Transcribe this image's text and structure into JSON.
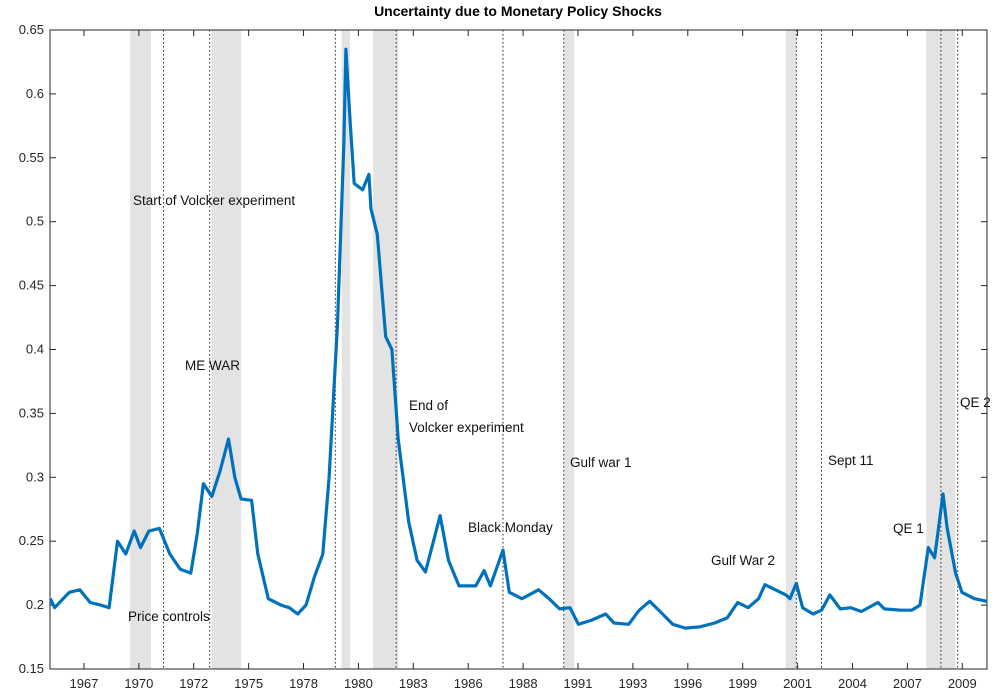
{
  "chart_data": {
    "type": "line",
    "title": "Uncertainty due to Monetary Policy Shocks",
    "x": [
      1965.7,
      1965.9,
      1966.6,
      1967.1,
      1967.6,
      1968.1,
      1968.5,
      1968.9,
      1969.3,
      1969.7,
      1970.0,
      1970.4,
      1970.9,
      1971.4,
      1971.9,
      1972.4,
      1972.7,
      1973.0,
      1973.4,
      1973.8,
      1974.2,
      1974.5,
      1974.8,
      1975.3,
      1975.6,
      1976.1,
      1976.7,
      1977.1,
      1977.5,
      1977.9,
      1978.3,
      1978.7,
      1979.0,
      1979.4,
      1979.7,
      1979.8,
      1980.0,
      1980.2,
      1980.6,
      1980.9,
      1981.0,
      1981.3,
      1981.7,
      1982.0,
      1982.3,
      1982.8,
      1983.2,
      1983.6,
      1983.9,
      1984.3,
      1984.7,
      1985.2,
      1986.0,
      1986.4,
      1986.7,
      1987.3,
      1987.6,
      1988.2,
      1989.0,
      1989.5,
      1990.0,
      1990.5,
      1990.9,
      1991.5,
      1992.2,
      1992.6,
      1993.3,
      1993.8,
      1994.3,
      1994.8,
      1995.4,
      1996.0,
      1996.7,
      1997.4,
      1998.0,
      1998.5,
      1999.0,
      1999.5,
      1999.8,
      2000.3,
      2000.8,
      2001.0,
      2001.3,
      2001.6,
      2002.1,
      2002.5,
      2002.9,
      2003.4,
      2003.9,
      2004.4,
      2005.2,
      2005.5,
      2006.3,
      2006.8,
      2007.2,
      2007.6,
      2007.9,
      2008.3,
      2008.5,
      2008.9,
      2009.2,
      2009.8,
      2010.4
    ],
    "series": [
      {
        "color": "#0072bd",
        "values": [
          0.205,
          0.198,
          0.21,
          0.212,
          0.202,
          0.2,
          0.198,
          0.25,
          0.24,
          0.258,
          0.245,
          0.258,
          0.26,
          0.24,
          0.228,
          0.225,
          0.255,
          0.295,
          0.285,
          0.305,
          0.33,
          0.3,
          0.283,
          0.282,
          0.24,
          0.205,
          0.2,
          0.198,
          0.193,
          0.2,
          0.222,
          0.24,
          0.3,
          0.42,
          0.56,
          0.635,
          0.58,
          0.53,
          0.525,
          0.537,
          0.51,
          0.49,
          0.41,
          0.4,
          0.33,
          0.265,
          0.235,
          0.226,
          0.245,
          0.27,
          0.235,
          0.215,
          0.215,
          0.227,
          0.215,
          0.243,
          0.21,
          0.205,
          0.212,
          0.205,
          0.197,
          0.198,
          0.185,
          0.188,
          0.193,
          0.186,
          0.185,
          0.196,
          0.203,
          0.195,
          0.185,
          0.182,
          0.183,
          0.186,
          0.19,
          0.202,
          0.198,
          0.205,
          0.216,
          0.212,
          0.208,
          0.205,
          0.217,
          0.198,
          0.193,
          0.196,
          0.208,
          0.197,
          0.198,
          0.195,
          0.202,
          0.197,
          0.196,
          0.196,
          0.2,
          0.245,
          0.237,
          0.287,
          0.26,
          0.225,
          0.21,
          0.205,
          0.203
        ]
      }
    ],
    "xlim": [
      1965.68,
      2010.4
    ],
    "xticks": [
      {
        "value": 1967.3,
        "label": "1967"
      },
      {
        "value": 1969.92,
        "label": "1970"
      },
      {
        "value": 1972.54,
        "label": "1972"
      },
      {
        "value": 1975.16,
        "label": "1975"
      },
      {
        "value": 1977.78,
        "label": "1978"
      },
      {
        "value": 1980.4,
        "label": "1980"
      },
      {
        "value": 1983.02,
        "label": "1983"
      },
      {
        "value": 1985.64,
        "label": "1986"
      },
      {
        "value": 1988.26,
        "label": "1988"
      },
      {
        "value": 1990.88,
        "label": "1991"
      },
      {
        "value": 1993.5,
        "label": "1993"
      },
      {
        "value": 1996.12,
        "label": "1996"
      },
      {
        "value": 1998.74,
        "label": "1999"
      },
      {
        "value": 2001.36,
        "label": "2001"
      },
      {
        "value": 2003.98,
        "label": "2004"
      },
      {
        "value": 2006.6,
        "label": "2007"
      },
      {
        "value": 2009.22,
        "label": "2009"
      }
    ],
    "ylim": [
      0.15,
      0.65
    ],
    "yticks": [
      0.15,
      0.2,
      0.25,
      0.3,
      0.35,
      0.4,
      0.45,
      0.5,
      0.55,
      0.6,
      0.65
    ],
    "grid": false,
    "shaded_periods": [
      [
        1969.5,
        1970.5
      ],
      [
        1973.4,
        1974.8
      ],
      [
        1979.6,
        1980.0
      ],
      [
        1981.1,
        1982.3
      ],
      [
        1990.2,
        1990.7
      ],
      [
        2000.8,
        2001.3
      ],
      [
        2007.5,
        2008.9
      ]
    ],
    "shade_color": "#e3e3e3",
    "event_lines": [
      1971.1,
      1973.3,
      1979.3,
      1982.2,
      1987.3,
      1990.2,
      2001.3,
      2002.5,
      2008.2,
      2009.0
    ],
    "annotations": [
      "Start of Volcker experiment",
      "ME WAR",
      "End of",
      "Volcker experiment",
      "Black Monday",
      "Gulf war 1",
      "Sept 11",
      "QE 2",
      "QE 1",
      "Gulf War 2",
      "Price controls"
    ]
  }
}
